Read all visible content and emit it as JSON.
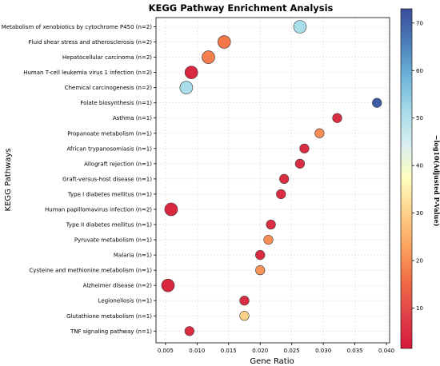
{
  "chart_data": {
    "type": "scatter",
    "title": "KEGG Pathway Enrichment Analysis",
    "xlabel": "Gene Ratio",
    "ylabel": "KEGG Pathways",
    "xlim": [
      0.0035,
      0.0405
    ],
    "xticks": [
      "0.005",
      "0.010",
      "0.015",
      "0.020",
      "0.025",
      "0.030",
      "0.035",
      "0.040"
    ],
    "colorbar": {
      "label": "−log10(Adjusted P-Value)",
      "range": [
        1.5,
        73
      ],
      "ticks": [
        "10",
        "20",
        "30",
        "40",
        "50",
        "60",
        "70"
      ],
      "colormap": "RdYlBu"
    },
    "grid": true,
    "points": [
      {
        "pathway": "Metabolism of xenobiotics by cytochrome P450 (n=2)",
        "gene_ratio": 0.0263,
        "neg_log10_padj": 51,
        "count": 2
      },
      {
        "pathway": "Fluid shear stress and atherosclerosis (n=2)",
        "gene_ratio": 0.0143,
        "neg_log10_padj": 17,
        "count": 2
      },
      {
        "pathway": "Hepatocellular carcinoma (n=2)",
        "gene_ratio": 0.0118,
        "neg_log10_padj": 18,
        "count": 2
      },
      {
        "pathway": "Human T-cell leukemia virus 1 infection (n=2)",
        "gene_ratio": 0.0091,
        "neg_log10_padj": 4,
        "count": 2
      },
      {
        "pathway": "Chemical carcinogenesis (n=2)",
        "gene_ratio": 0.0083,
        "neg_log10_padj": 51,
        "count": 2
      },
      {
        "pathway": "Folate biosynthesis (n=1)",
        "gene_ratio": 0.0385,
        "neg_log10_padj": 71,
        "count": 1
      },
      {
        "pathway": "Asthma (n=1)",
        "gene_ratio": 0.0322,
        "neg_log10_padj": 5,
        "count": 1
      },
      {
        "pathway": "Propanoate metabolism (n=1)",
        "gene_ratio": 0.0294,
        "neg_log10_padj": 20,
        "count": 1
      },
      {
        "pathway": "African trypanosomiasis (n=1)",
        "gene_ratio": 0.027,
        "neg_log10_padj": 5,
        "count": 1
      },
      {
        "pathway": "Allograft rejection (n=1)",
        "gene_ratio": 0.0263,
        "neg_log10_padj": 5,
        "count": 1
      },
      {
        "pathway": "Graft-versus-host disease (n=1)",
        "gene_ratio": 0.0238,
        "neg_log10_padj": 5,
        "count": 1
      },
      {
        "pathway": "Type I diabetes mellitus (n=1)",
        "gene_ratio": 0.0233,
        "neg_log10_padj": 5,
        "count": 1
      },
      {
        "pathway": "Human papillomavirus infection (n=2)",
        "gene_ratio": 0.0059,
        "neg_log10_padj": 4,
        "count": 2
      },
      {
        "pathway": "Type II diabetes mellitus (n=1)",
        "gene_ratio": 0.0217,
        "neg_log10_padj": 5,
        "count": 1
      },
      {
        "pathway": "Pyruvate metabolism (n=1)",
        "gene_ratio": 0.0213,
        "neg_log10_padj": 20,
        "count": 1
      },
      {
        "pathway": "Malaria (n=1)",
        "gene_ratio": 0.02,
        "neg_log10_padj": 5,
        "count": 1
      },
      {
        "pathway": "Cysteine and methionine metabolism (n=1)",
        "gene_ratio": 0.02,
        "neg_log10_padj": 21,
        "count": 1
      },
      {
        "pathway": "Alzheimer disease (n=2)",
        "gene_ratio": 0.0054,
        "neg_log10_padj": 4,
        "count": 2
      },
      {
        "pathway": "Legionellosis (n=1)",
        "gene_ratio": 0.0175,
        "neg_log10_padj": 5,
        "count": 1
      },
      {
        "pathway": "Glutathione metabolism (n=1)",
        "gene_ratio": 0.0175,
        "neg_log10_padj": 30,
        "count": 1
      },
      {
        "pathway": "TNF signaling pathway (n=1)",
        "gene_ratio": 0.0088,
        "neg_log10_padj": 5,
        "count": 1
      }
    ]
  }
}
